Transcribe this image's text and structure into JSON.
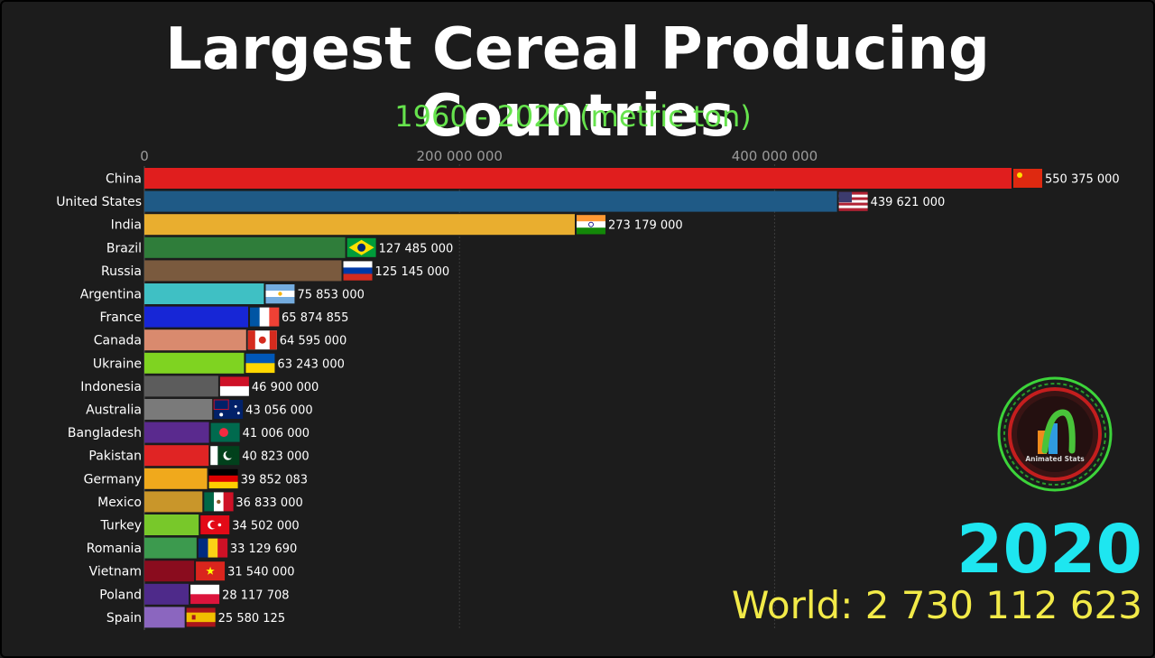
{
  "header": {
    "title": "Largest Cereal Producing Countries",
    "subtitle": "1960 - 2020 (metric ton)"
  },
  "footer": {
    "year": "2020",
    "world_total": "World: 2 730 112 623"
  },
  "logo": {
    "text": "Animated Stats",
    "icon": "animated-stats-logo"
  },
  "colors": {
    "background": "#1c1c1c",
    "title": "#ffffff",
    "subtitle": "#66e34d",
    "year": "#1ee6f0",
    "world": "#f2ea48"
  },
  "chart_data": {
    "type": "bar",
    "orientation": "horizontal",
    "xlim": [
      0,
      550375000
    ],
    "x_ticks": [
      {
        "value": 0,
        "label": "0"
      },
      {
        "value": 200000000,
        "label": "200 000 000"
      },
      {
        "value": 400000000,
        "label": "400 000 000"
      }
    ],
    "grid": true,
    "categories": [
      "China",
      "United States",
      "India",
      "Brazil",
      "Russia",
      "Argentina",
      "France",
      "Canada",
      "Ukraine",
      "Indonesia",
      "Australia",
      "Bangladesh",
      "Pakistan",
      "Germany",
      "Mexico",
      "Turkey",
      "Romania",
      "Vietnam",
      "Poland",
      "Spain"
    ],
    "values": [
      550375000,
      439621000,
      273179000,
      127485000,
      125145000,
      75853000,
      65874855,
      64595000,
      63243000,
      46900000,
      43056000,
      41006000,
      40823000,
      39852083,
      36833000,
      34502000,
      33129690,
      31540000,
      28117708,
      25580125
    ],
    "value_labels": [
      "550 375 000",
      "439 621 000",
      "273 179 000",
      "127 485 000",
      "125 145 000",
      "75 853 000",
      "65 874 855",
      "64 595 000",
      "63 243 000",
      "46 900 000",
      "43 056 000",
      "41 006 000",
      "40 823 000",
      "39 852 083",
      "36 833 000",
      "34 502 000",
      "33 129 690",
      "31 540 000",
      "28 117 708",
      "25 580 125"
    ],
    "bar_colors": [
      "#e01e1e",
      "#1f5a86",
      "#e9ae2f",
      "#2f7d3a",
      "#7a5a3e",
      "#3fc0c4",
      "#1726d6",
      "#d98a6e",
      "#7fd321",
      "#5c5c5c",
      "#7a7a7a",
      "#5a2a8e",
      "#e02424",
      "#f0a91c",
      "#c9962a",
      "#78c82a",
      "#3c9a4e",
      "#8a0c1e",
      "#4e2a8a",
      "#8b66bf"
    ],
    "flag_icons": [
      "china-flag-icon",
      "usa-flag-icon",
      "india-flag-icon",
      "brazil-flag-icon",
      "russia-flag-icon",
      "argentina-flag-icon",
      "france-flag-icon",
      "canada-flag-icon",
      "ukraine-flag-icon",
      "indonesia-flag-icon",
      "australia-flag-icon",
      "bangladesh-flag-icon",
      "pakistan-flag-icon",
      "germany-flag-icon",
      "mexico-flag-icon",
      "turkey-flag-icon",
      "romania-flag-icon",
      "vietnam-flag-icon",
      "poland-flag-icon",
      "spain-flag-icon"
    ]
  }
}
